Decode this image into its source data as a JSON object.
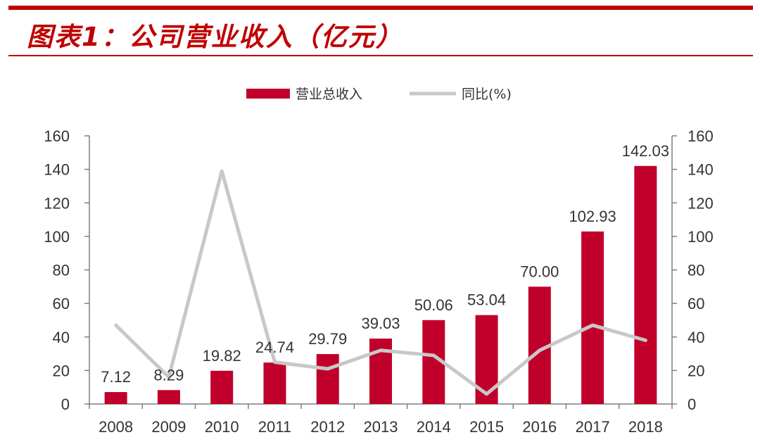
{
  "figure": {
    "title": "图表1：公司营业收入（亿元）"
  },
  "colors": {
    "accent": "#c00000",
    "bar": "#c0002a",
    "line": "#c8c8c8",
    "axis": "#7f7f7f",
    "text": "#333333"
  },
  "chart_data": {
    "type": "bar",
    "title": "",
    "categories": [
      "2008",
      "2009",
      "2010",
      "2011",
      "2012",
      "2013",
      "2014",
      "2015",
      "2016",
      "2017",
      "2018"
    ],
    "series": [
      {
        "name": "营业总收入",
        "type": "bar",
        "axis": "left",
        "values": [
          7.12,
          8.29,
          19.82,
          24.74,
          29.79,
          39.03,
          50.06,
          53.04,
          70.0,
          102.93,
          142.03
        ],
        "labels": [
          "7.12",
          "8.29",
          "19.82",
          "24.74",
          "29.79",
          "39.03",
          "50.06",
          "53.04",
          "70.00",
          "102.93",
          "142.03"
        ]
      },
      {
        "name": "同比(%)",
        "type": "line",
        "axis": "right",
        "values": [
          47,
          16,
          139,
          25,
          21,
          32,
          29,
          6,
          32,
          47,
          38
        ]
      }
    ],
    "y_left": {
      "min": 0,
      "max": 160,
      "step": 20
    },
    "y_right": {
      "min": 0,
      "max": 160,
      "step": 20
    },
    "legend": {
      "position": "top"
    },
    "grid": false
  }
}
